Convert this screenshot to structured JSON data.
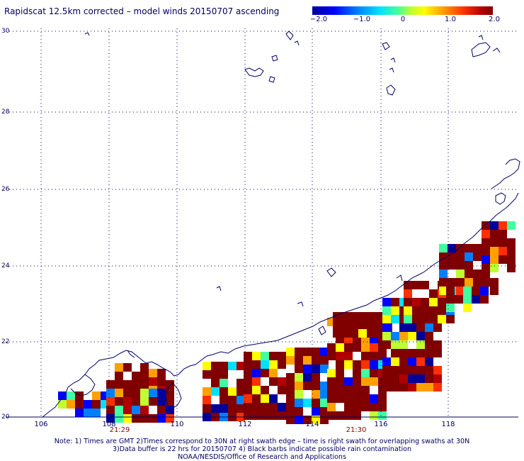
{
  "title": "Rapidscat 12.5km corrected – model winds 20150707 ascending",
  "colorbar": {
    "ticks": [
      "−2.0",
      "−1.0",
      "0",
      "1.0",
      "2.0"
    ],
    "colors": [
      "#00009a",
      "#0000ff",
      "#0080ff",
      "#00e0ff",
      "#40ffa0",
      "#c0ff30",
      "#ffff00",
      "#ffa000",
      "#ff3000",
      "#b00000",
      "#800000"
    ]
  },
  "map": {
    "lat_ticks": [
      "30",
      "28",
      "26",
      "24",
      "22",
      "20"
    ],
    "lon_ticks": [
      "106",
      "108",
      "110",
      "112",
      "114",
      "116",
      "118"
    ],
    "lon_range": [
      105.5,
      119.8
    ],
    "lat_range": [
      20,
      30
    ],
    "swath_times": [
      "21:29",
      "21:30"
    ],
    "graticule": "dotted",
    "coastline_color": "#000066"
  },
  "notes": {
    "line1": "Note: 1) Times are GMT 2)Times correspond to 30N at right swath edge – time is right swath for overlapping swaths at 30N",
    "line2": "3)Data buffer is 22 hrs for 20150707 4) Black barbs indicate possible rain contamination",
    "line3": "NOAA/NESDIS/Office of Research and Applications"
  }
}
